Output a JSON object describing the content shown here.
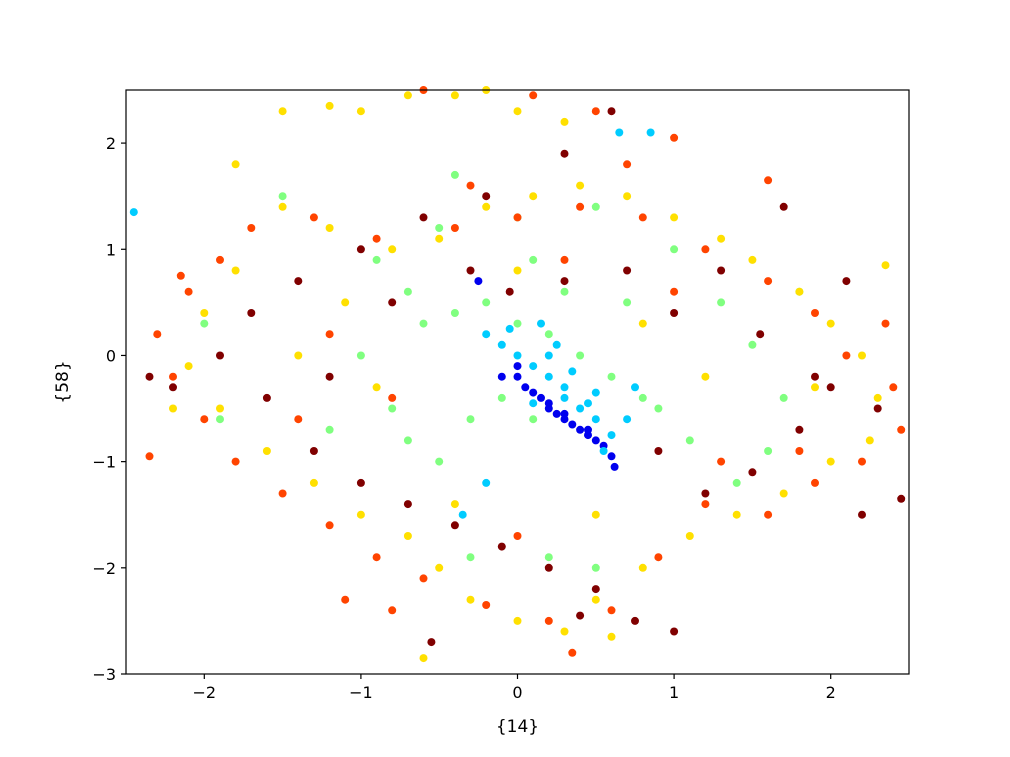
{
  "chart_data": {
    "type": "scatter",
    "title": "",
    "xlabel": "{14}",
    "ylabel": "{58}",
    "xlim": [
      -2.5,
      2.5
    ],
    "ylim": [
      -3,
      2.5
    ],
    "grid": false,
    "legend": "none",
    "xticks": [
      -2,
      -1,
      0,
      1,
      2
    ],
    "yticks": [
      -3,
      -2,
      -1,
      0,
      1,
      2
    ],
    "xtick_labels": [
      "−2",
      "−1",
      "0",
      "1",
      "2"
    ],
    "ytick_labels": [
      "−3",
      "−2",
      "−1",
      "0",
      "1",
      "2"
    ],
    "colors": [
      "#0000ee",
      "#00ccff",
      "#80ff80",
      "#ffe000",
      "#ff4400",
      "#800000"
    ],
    "series": [
      {
        "color": "#0000ee",
        "points": [
          [
            0.0,
            -0.2
          ],
          [
            0.05,
            -0.3
          ],
          [
            0.1,
            -0.35
          ],
          [
            0.15,
            -0.4
          ],
          [
            0.2,
            -0.45
          ],
          [
            0.25,
            -0.55
          ],
          [
            0.3,
            -0.6
          ],
          [
            0.35,
            -0.65
          ],
          [
            0.4,
            -0.7
          ],
          [
            0.45,
            -0.75
          ],
          [
            0.5,
            -0.8
          ],
          [
            0.55,
            -0.85
          ],
          [
            0.6,
            -0.95
          ],
          [
            0.62,
            -1.05
          ],
          [
            -0.25,
            0.7
          ],
          [
            -0.1,
            -0.2
          ],
          [
            0.0,
            -0.1
          ],
          [
            0.2,
            -0.5
          ],
          [
            0.3,
            -0.55
          ],
          [
            0.45,
            -0.7
          ]
        ]
      },
      {
        "color": "#00ccff",
        "points": [
          [
            -0.1,
            0.1
          ],
          [
            0.0,
            0.0
          ],
          [
            0.1,
            -0.1
          ],
          [
            0.2,
            -0.2
          ],
          [
            0.3,
            -0.3
          ],
          [
            0.4,
            -0.5
          ],
          [
            0.5,
            -0.6
          ],
          [
            0.6,
            -0.75
          ],
          [
            0.55,
            -0.9
          ],
          [
            0.7,
            -0.6
          ],
          [
            -0.2,
            0.2
          ],
          [
            0.15,
            0.3
          ],
          [
            0.25,
            0.1
          ],
          [
            0.35,
            -0.15
          ],
          [
            -2.45,
            1.35
          ],
          [
            0.65,
            2.1
          ],
          [
            0.85,
            2.1
          ],
          [
            -0.35,
            -1.5
          ],
          [
            -0.2,
            -1.2
          ],
          [
            0.1,
            -0.45
          ],
          [
            0.3,
            -0.4
          ],
          [
            0.45,
            -0.45
          ],
          [
            0.5,
            -0.35
          ],
          [
            0.2,
            0.0
          ],
          [
            -0.05,
            0.25
          ],
          [
            0.75,
            -0.3
          ]
        ]
      },
      {
        "color": "#80ff80",
        "points": [
          [
            -0.6,
            0.3
          ],
          [
            -0.4,
            0.4
          ],
          [
            -0.2,
            0.5
          ],
          [
            0.0,
            0.3
          ],
          [
            0.2,
            0.2
          ],
          [
            0.4,
            0.0
          ],
          [
            0.6,
            -0.2
          ],
          [
            0.8,
            -0.4
          ],
          [
            -0.8,
            -0.5
          ],
          [
            -0.7,
            -0.8
          ],
          [
            -0.5,
            -1.0
          ],
          [
            -0.3,
            -0.6
          ],
          [
            -0.1,
            -0.4
          ],
          [
            0.1,
            -0.6
          ],
          [
            -1.0,
            0.0
          ],
          [
            -1.2,
            -0.7
          ],
          [
            -0.9,
            0.9
          ],
          [
            -0.5,
            1.2
          ],
          [
            0.0,
            1.3
          ],
          [
            0.5,
            1.4
          ],
          [
            1.0,
            1.0
          ],
          [
            1.3,
            0.5
          ],
          [
            1.5,
            0.1
          ],
          [
            1.7,
            -0.4
          ],
          [
            1.6,
            -0.9
          ],
          [
            1.4,
            -1.2
          ],
          [
            0.9,
            -0.5
          ],
          [
            0.7,
            0.5
          ],
          [
            0.3,
            0.6
          ],
          [
            -0.3,
            -1.9
          ],
          [
            0.2,
            -1.9
          ],
          [
            0.5,
            -2.0
          ],
          [
            -1.5,
            1.5
          ],
          [
            -2.0,
            0.3
          ],
          [
            -1.9,
            -0.6
          ],
          [
            1.8,
            0.6
          ],
          [
            -0.4,
            1.7
          ],
          [
            0.1,
            0.9
          ],
          [
            -0.7,
            0.6
          ],
          [
            1.1,
            -0.8
          ]
        ]
      },
      {
        "color": "#ffe000",
        "points": [
          [
            -1.5,
            2.3
          ],
          [
            -1.2,
            2.35
          ],
          [
            -1.0,
            2.3
          ],
          [
            -0.7,
            2.45
          ],
          [
            -0.4,
            2.45
          ],
          [
            -0.2,
            2.5
          ],
          [
            0.0,
            2.3
          ],
          [
            0.3,
            2.2
          ],
          [
            -1.8,
            1.8
          ],
          [
            -1.5,
            1.4
          ],
          [
            -1.2,
            1.2
          ],
          [
            -0.8,
            1.0
          ],
          [
            -0.5,
            1.1
          ],
          [
            -0.2,
            1.4
          ],
          [
            0.1,
            1.5
          ],
          [
            0.4,
            1.6
          ],
          [
            0.7,
            1.5
          ],
          [
            1.0,
            1.3
          ],
          [
            1.3,
            1.1
          ],
          [
            1.5,
            0.9
          ],
          [
            1.8,
            0.6
          ],
          [
            2.0,
            0.3
          ],
          [
            2.2,
            0.0
          ],
          [
            2.3,
            -0.4
          ],
          [
            2.25,
            -0.8
          ],
          [
            2.0,
            -1.0
          ],
          [
            1.7,
            -1.3
          ],
          [
            1.4,
            -1.5
          ],
          [
            1.1,
            -1.7
          ],
          [
            0.8,
            -2.0
          ],
          [
            0.5,
            -2.3
          ],
          [
            0.3,
            -2.6
          ],
          [
            0.0,
            -2.5
          ],
          [
            -0.3,
            -2.3
          ],
          [
            -0.5,
            -2.0
          ],
          [
            -0.7,
            -1.7
          ],
          [
            -1.0,
            -1.5
          ],
          [
            -1.3,
            -1.2
          ],
          [
            -1.6,
            -0.9
          ],
          [
            -1.9,
            -0.5
          ],
          [
            -2.1,
            -0.1
          ],
          [
            -2.0,
            0.4
          ],
          [
            -1.8,
            0.8
          ],
          [
            -0.6,
            -2.85
          ],
          [
            0.6,
            -2.65
          ],
          [
            2.35,
            0.85
          ],
          [
            -2.2,
            -0.5
          ],
          [
            -1.1,
            0.5
          ],
          [
            -0.9,
            -0.3
          ],
          [
            0.0,
            0.8
          ],
          [
            0.8,
            0.3
          ],
          [
            1.2,
            -0.2
          ],
          [
            0.5,
            -1.5
          ],
          [
            -0.4,
            -1.4
          ],
          [
            1.9,
            -0.3
          ],
          [
            -1.4,
            0.0
          ]
        ]
      },
      {
        "color": "#ff4400",
        "points": [
          [
            -0.6,
            2.5
          ],
          [
            0.1,
            2.45
          ],
          [
            0.5,
            2.3
          ],
          [
            1.0,
            2.05
          ],
          [
            -1.7,
            1.2
          ],
          [
            -1.3,
            1.3
          ],
          [
            -0.9,
            1.1
          ],
          [
            -0.4,
            1.2
          ],
          [
            0.0,
            1.3
          ],
          [
            0.4,
            1.4
          ],
          [
            0.8,
            1.3
          ],
          [
            1.2,
            1.0
          ],
          [
            1.6,
            0.7
          ],
          [
            1.9,
            0.4
          ],
          [
            2.1,
            0.0
          ],
          [
            2.4,
            -0.3
          ],
          [
            2.45,
            -0.7
          ],
          [
            2.2,
            -1.0
          ],
          [
            1.9,
            -1.2
          ],
          [
            1.6,
            -1.5
          ],
          [
            1.2,
            -1.4
          ],
          [
            0.9,
            -1.9
          ],
          [
            0.6,
            -2.4
          ],
          [
            0.2,
            -2.5
          ],
          [
            -0.2,
            -2.35
          ],
          [
            -0.6,
            -2.1
          ],
          [
            -0.9,
            -1.9
          ],
          [
            -1.2,
            -1.6
          ],
          [
            -1.5,
            -1.3
          ],
          [
            -1.8,
            -1.0
          ],
          [
            -2.0,
            -0.6
          ],
          [
            -2.2,
            -0.2
          ],
          [
            -2.3,
            0.2
          ],
          [
            -2.1,
            0.6
          ],
          [
            -1.9,
            0.9
          ],
          [
            -2.35,
            -0.95
          ],
          [
            -2.15,
            0.75
          ],
          [
            -1.1,
            -2.3
          ],
          [
            -0.8,
            -2.4
          ],
          [
            1.6,
            1.65
          ],
          [
            2.35,
            0.3
          ],
          [
            -1.2,
            0.2
          ],
          [
            -0.8,
            -0.4
          ],
          [
            0.3,
            0.9
          ],
          [
            1.0,
            0.6
          ],
          [
            1.3,
            -1.0
          ],
          [
            0.0,
            -1.7
          ],
          [
            -1.4,
            -0.6
          ],
          [
            1.8,
            -0.9
          ],
          [
            0.7,
            1.8
          ],
          [
            -0.3,
            1.6
          ],
          [
            0.35,
            -2.8
          ]
        ]
      },
      {
        "color": "#800000",
        "points": [
          [
            0.6,
            2.3
          ],
          [
            0.3,
            1.9
          ],
          [
            -0.2,
            1.5
          ],
          [
            -0.6,
            1.3
          ],
          [
            -1.0,
            1.0
          ],
          [
            -1.4,
            0.7
          ],
          [
            -1.7,
            0.4
          ],
          [
            -1.9,
            0.0
          ],
          [
            -2.2,
            -0.3
          ],
          [
            -2.35,
            -0.2
          ],
          [
            -1.6,
            -0.4
          ],
          [
            -1.3,
            -0.9
          ],
          [
            -1.0,
            -1.2
          ],
          [
            -0.7,
            -1.4
          ],
          [
            -0.4,
            -1.6
          ],
          [
            -0.1,
            -1.8
          ],
          [
            0.2,
            -2.0
          ],
          [
            0.5,
            -2.2
          ],
          [
            0.75,
            -2.5
          ],
          [
            1.0,
            -2.6
          ],
          [
            1.2,
            -1.3
          ],
          [
            1.5,
            -1.1
          ],
          [
            1.8,
            -0.7
          ],
          [
            2.0,
            -0.3
          ],
          [
            2.3,
            -0.5
          ],
          [
            2.45,
            -1.35
          ],
          [
            2.2,
            -1.5
          ],
          [
            1.3,
            0.8
          ],
          [
            1.0,
            0.4
          ],
          [
            0.7,
            0.8
          ],
          [
            0.3,
            0.7
          ],
          [
            -0.3,
            0.8
          ],
          [
            -0.8,
            0.5
          ],
          [
            -1.2,
            -0.2
          ],
          [
            1.7,
            1.4
          ],
          [
            1.9,
            -0.2
          ],
          [
            -0.55,
            -2.7
          ],
          [
            0.4,
            -2.45
          ],
          [
            0.9,
            -0.9
          ],
          [
            -0.05,
            0.6
          ],
          [
            1.55,
            0.2
          ],
          [
            2.1,
            0.7
          ]
        ]
      }
    ]
  }
}
